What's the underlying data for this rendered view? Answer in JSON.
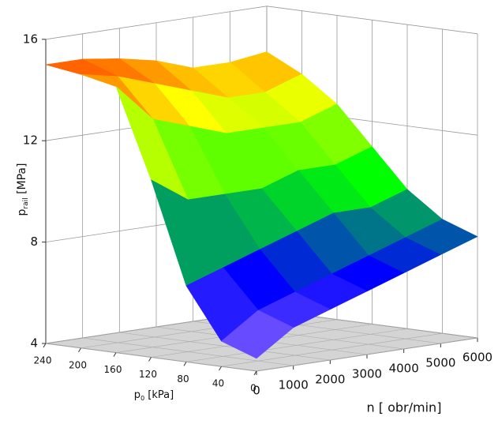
{
  "chart_data": {
    "type": "surface",
    "z_label": {
      "main": "p",
      "sub": "rail",
      "unit": " [MPa]"
    },
    "y_label": {
      "main": "p",
      "sub": "0",
      "unit": " [kPa]"
    },
    "x_label": "n [ obr/min]",
    "x": [
      0,
      1000,
      2000,
      3000,
      4000,
      5000,
      6000
    ],
    "y": [
      0,
      40,
      80,
      120,
      160,
      200,
      240
    ],
    "z": [
      [
        4.5,
        5.5,
        6,
        6.5,
        7,
        7.5,
        8
      ],
      [
        5,
        6,
        6.5,
        7,
        7.5,
        8,
        8.5
      ],
      [
        7,
        7.5,
        8,
        8.5,
        9,
        9,
        9.5
      ],
      [
        11,
        10,
        10,
        10,
        10.5,
        10.5,
        11
      ],
      [
        14.5,
        13,
        12.5,
        12,
        12,
        12,
        12.5
      ],
      [
        14.8,
        14.5,
        14,
        13.5,
        13,
        13,
        13.5
      ],
      [
        15,
        15,
        14.8,
        14.5,
        14,
        14,
        14.2
      ]
    ],
    "xlim": [
      0,
      6000
    ],
    "xticks": [
      0,
      1000,
      2000,
      3000,
      4000,
      5000,
      6000
    ],
    "ylim": [
      0,
      240
    ],
    "yticks": [
      240,
      200,
      160,
      120,
      80,
      40,
      0
    ],
    "zlim": [
      4,
      16
    ],
    "zticks": [
      16,
      12,
      8,
      4
    ],
    "grid": true,
    "colorscale": [
      "#b080ff",
      "#0000ff",
      "#00ff00",
      "#ffff00",
      "#ff0000"
    ]
  }
}
